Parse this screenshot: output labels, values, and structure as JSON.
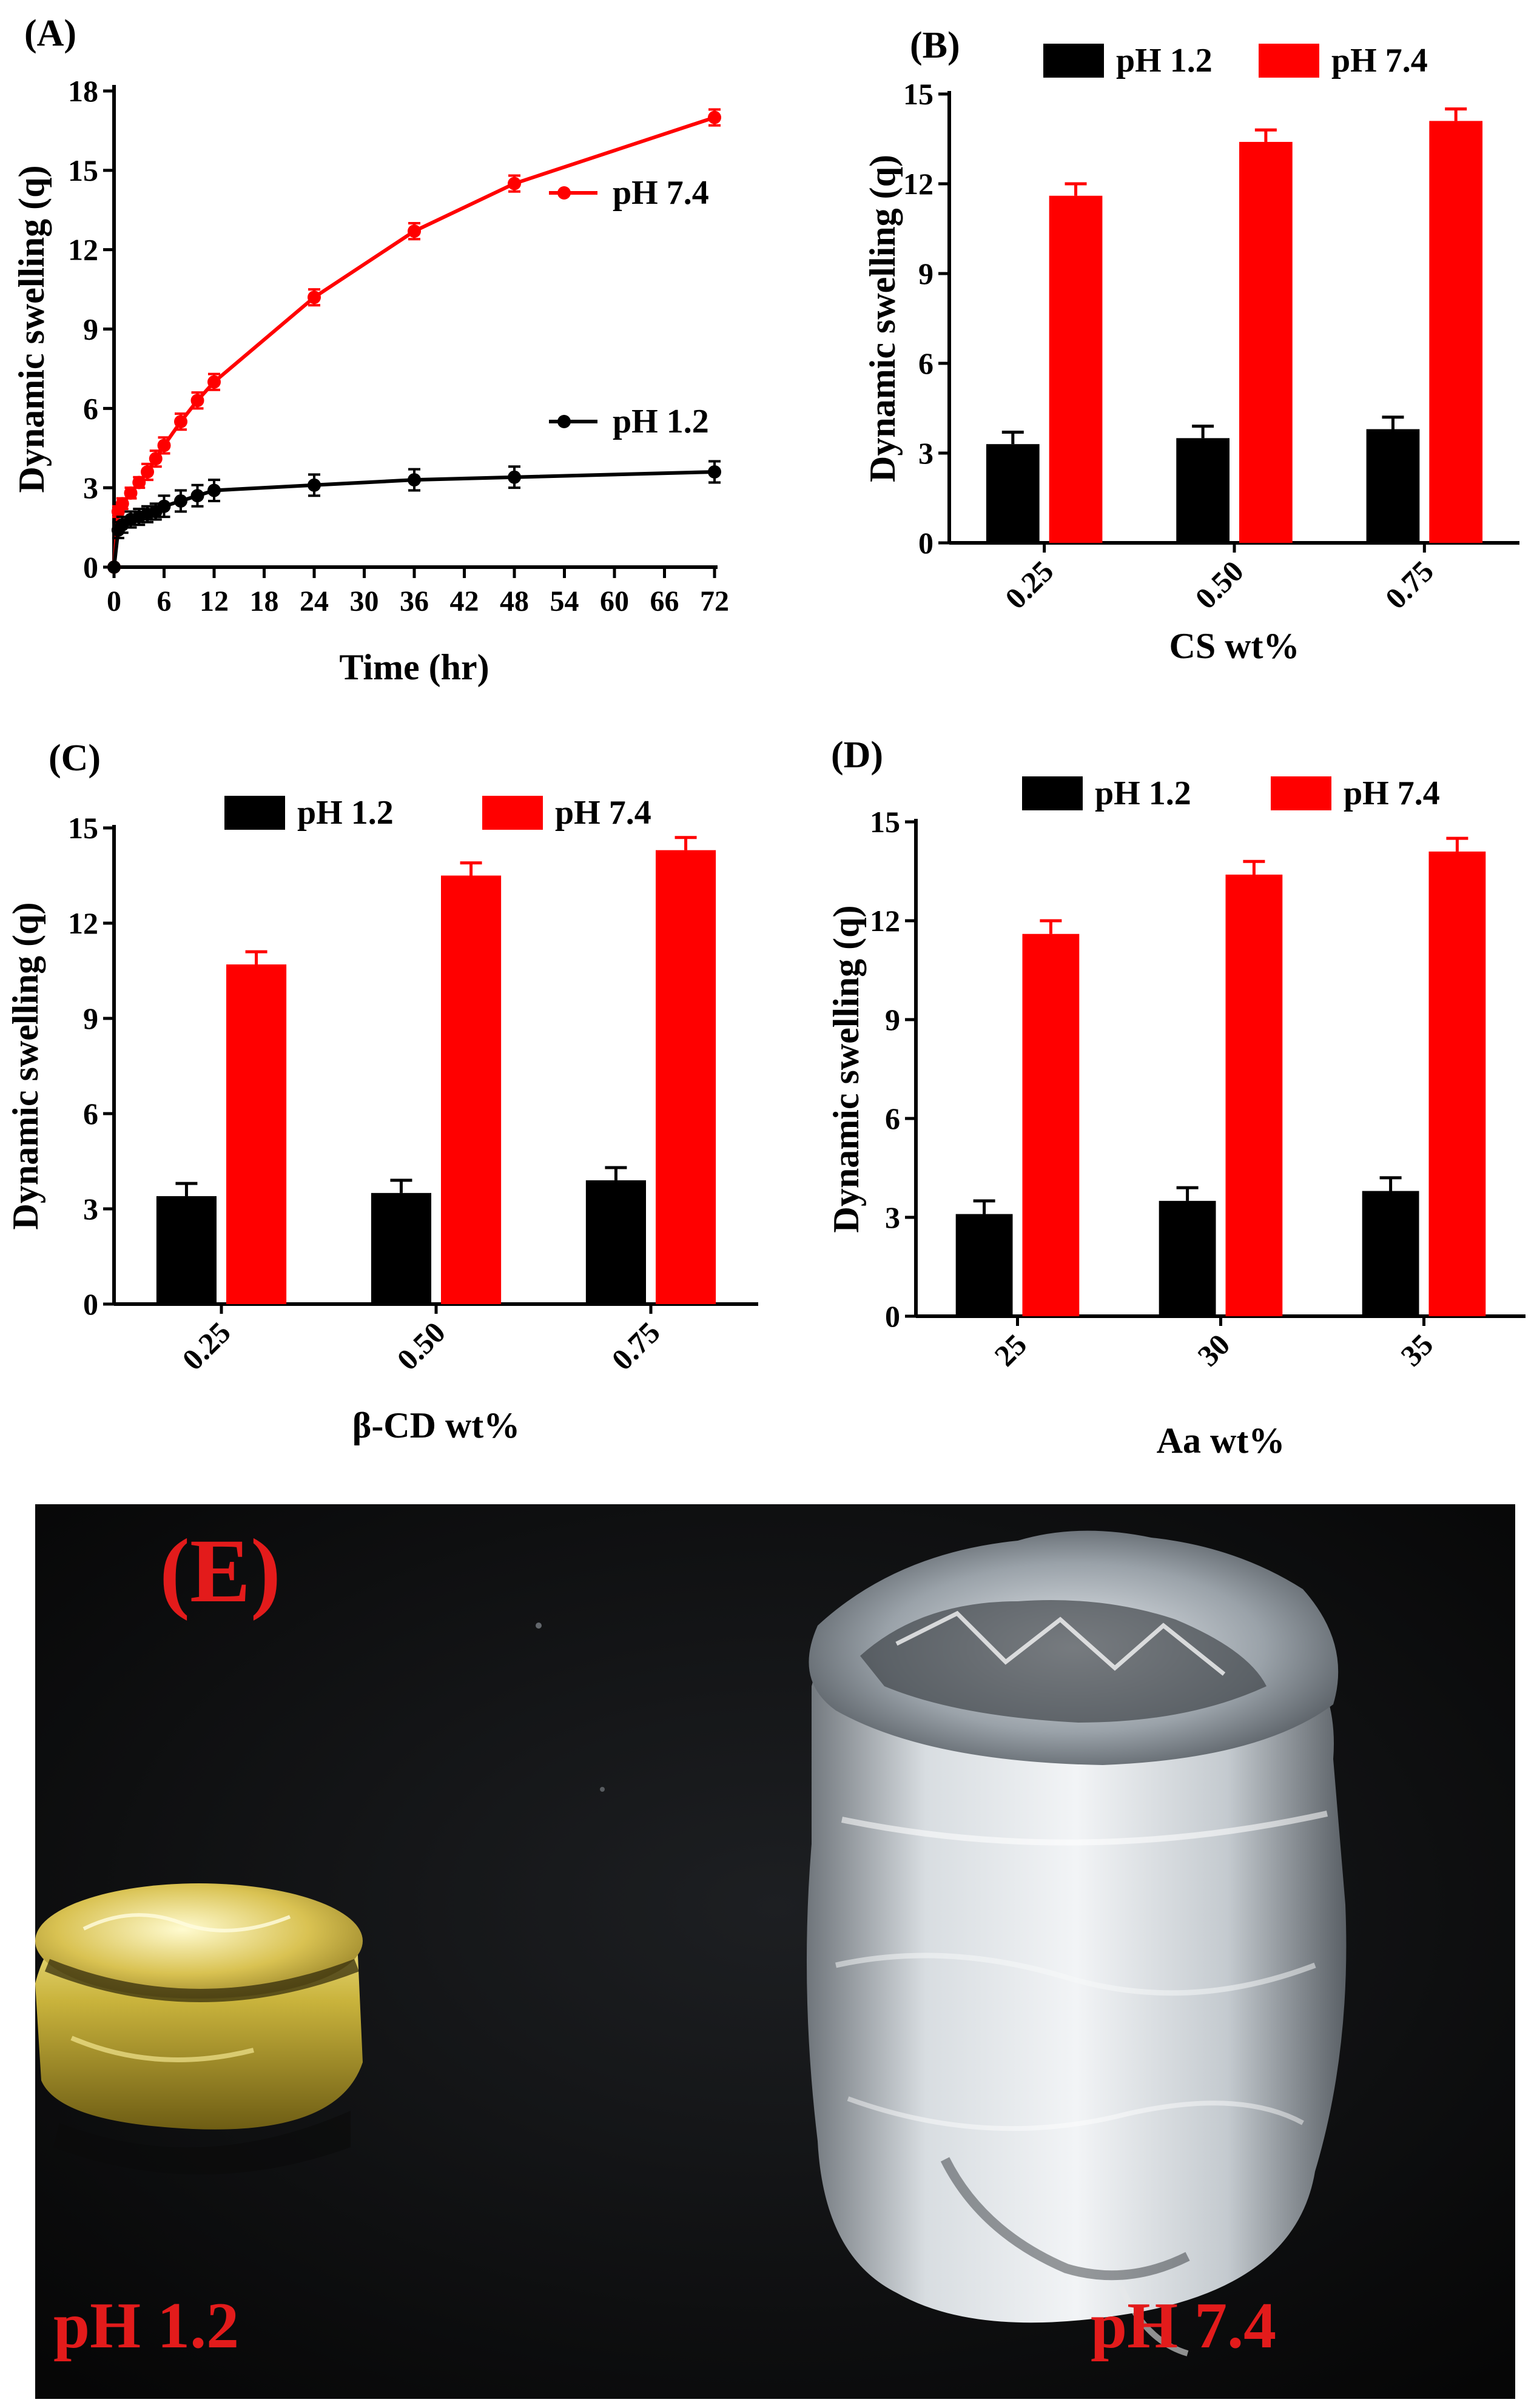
{
  "chart_data": [
    {
      "panel": "(A)",
      "type": "line",
      "xlabel": "Time (hr)",
      "ylabel": "Dynamic swelling (q)",
      "xlim": [
        0,
        72
      ],
      "ylim": [
        0,
        18
      ],
      "xticks": [
        0,
        6,
        12,
        18,
        24,
        30,
        36,
        42,
        48,
        54,
        60,
        66,
        72
      ],
      "yticks": [
        0,
        3,
        6,
        9,
        12,
        15,
        18
      ],
      "legend_position": "right",
      "series": [
        {
          "name": "pH 7.4",
          "color": "#ff0000",
          "x": [
            0,
            0.5,
            1,
            2,
            3,
            4,
            5,
            6,
            8,
            10,
            12,
            24,
            36,
            48,
            72
          ],
          "y": [
            0,
            2.1,
            2.4,
            2.8,
            3.2,
            3.6,
            4.1,
            4.6,
            5.5,
            6.3,
            7.0,
            10.2,
            12.7,
            14.5,
            17.0
          ],
          "err": [
            0,
            0.2,
            0.2,
            0.2,
            0.2,
            0.3,
            0.3,
            0.3,
            0.3,
            0.3,
            0.3,
            0.3,
            0.3,
            0.3,
            0.3
          ]
        },
        {
          "name": "pH 1.2",
          "color": "#000000",
          "x": [
            0,
            0.5,
            1,
            2,
            3,
            4,
            5,
            6,
            8,
            10,
            12,
            24,
            36,
            48,
            72
          ],
          "y": [
            0,
            1.4,
            1.6,
            1.8,
            1.9,
            2.0,
            2.1,
            2.3,
            2.5,
            2.7,
            2.9,
            3.1,
            3.3,
            3.4,
            3.6
          ],
          "err": [
            0,
            0.3,
            0.3,
            0.3,
            0.3,
            0.3,
            0.3,
            0.4,
            0.4,
            0.4,
            0.4,
            0.4,
            0.4,
            0.4,
            0.4
          ]
        }
      ]
    },
    {
      "panel": "(B)",
      "type": "bar",
      "xlabel": "CS wt%",
      "ylabel": "Dynamic swelling (q)",
      "categories": [
        "0.25",
        "0.50",
        "0.75"
      ],
      "ylim": [
        0,
        15
      ],
      "yticks": [
        0,
        3,
        6,
        9,
        12,
        15
      ],
      "legend_position": "top",
      "series": [
        {
          "name": "pH 1.2",
          "color": "#000000",
          "values": [
            3.3,
            3.5,
            3.8
          ],
          "err": [
            0.4,
            0.4,
            0.4
          ]
        },
        {
          "name": "pH 7.4",
          "color": "#ff0000",
          "values": [
            11.6,
            13.4,
            14.1
          ],
          "err": [
            0.4,
            0.4,
            0.4
          ]
        }
      ]
    },
    {
      "panel": "(C)",
      "type": "bar",
      "xlabel": "β-CD wt%",
      "ylabel": "Dynamic swelling (q)",
      "categories": [
        "0.25",
        "0.50",
        "0.75"
      ],
      "ylim": [
        0,
        15
      ],
      "yticks": [
        0,
        3,
        6,
        9,
        12,
        15
      ],
      "legend_position": "top",
      "series": [
        {
          "name": "pH 1.2",
          "color": "#000000",
          "values": [
            3.4,
            3.5,
            3.9
          ],
          "err": [
            0.4,
            0.4,
            0.4
          ]
        },
        {
          "name": "pH 7.4",
          "color": "#ff0000",
          "values": [
            10.7,
            13.5,
            14.3
          ],
          "err": [
            0.4,
            0.4,
            0.4
          ]
        }
      ]
    },
    {
      "panel": "(D)",
      "type": "bar",
      "xlabel": "Aa wt%",
      "ylabel": "Dynamic swelling (q)",
      "categories": [
        "25",
        "30",
        "35"
      ],
      "ylim": [
        0,
        15
      ],
      "yticks": [
        0,
        3,
        6,
        9,
        12,
        15
      ],
      "legend_position": "top",
      "series": [
        {
          "name": "pH 1.2",
          "color": "#000000",
          "values": [
            3.1,
            3.5,
            3.8
          ],
          "err": [
            0.4,
            0.4,
            0.4
          ]
        },
        {
          "name": "pH 7.4",
          "color": "#ff0000",
          "values": [
            11.6,
            13.4,
            14.1
          ],
          "err": [
            0.4,
            0.4,
            0.4
          ]
        }
      ]
    }
  ],
  "photo": {
    "label": "(E)",
    "left_caption": "pH 1.2",
    "right_caption": "pH 7.4",
    "label_color": "#e31b1b"
  }
}
